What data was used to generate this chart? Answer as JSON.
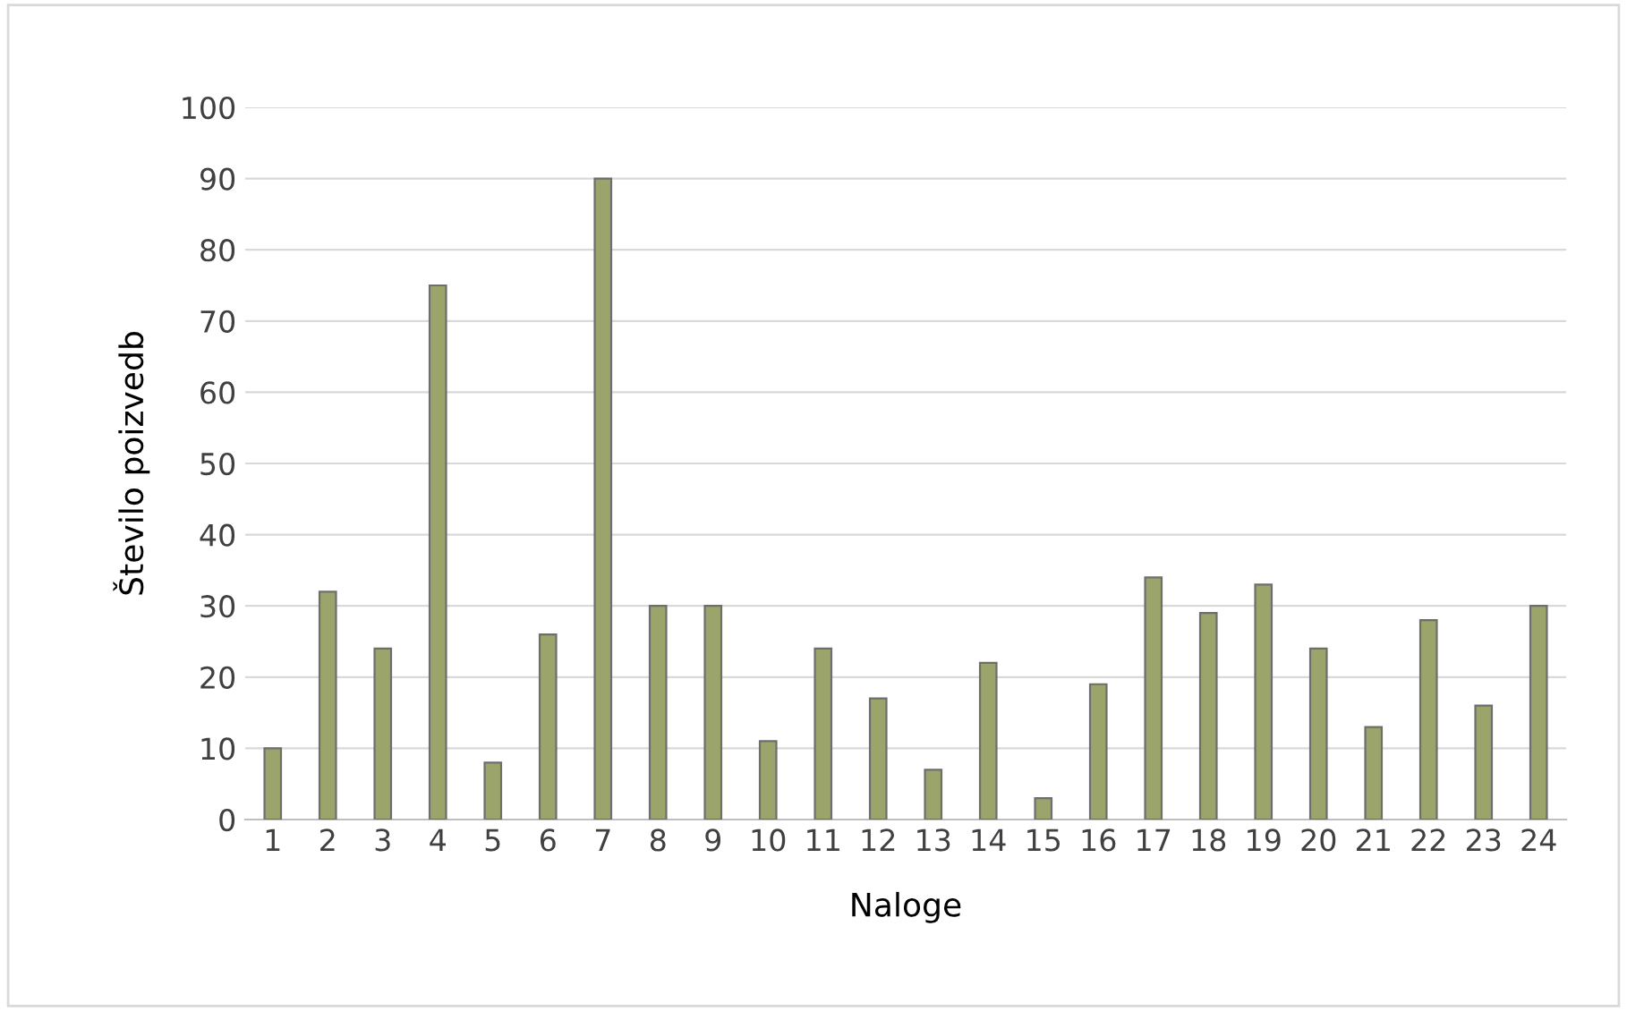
{
  "chart_data": {
    "type": "bar",
    "xlabel": "Naloge",
    "ylabel": "Število poizvedb",
    "categories": [
      "1",
      "2",
      "3",
      "4",
      "5",
      "6",
      "7",
      "8",
      "9",
      "10",
      "11",
      "12",
      "13",
      "14",
      "15",
      "16",
      "17",
      "18",
      "19",
      "20",
      "21",
      "22",
      "23",
      "24"
    ],
    "values": [
      10,
      32,
      24,
      75,
      8,
      26,
      90,
      30,
      30,
      11,
      24,
      17,
      7,
      22,
      3,
      19,
      34,
      29,
      33,
      24,
      13,
      28,
      16,
      30
    ],
    "color": "#9ba56b",
    "ylim": [
      0,
      100
    ],
    "yticks": [
      0,
      10,
      20,
      30,
      40,
      50,
      60,
      70,
      80,
      90,
      100
    ],
    "grid": "y",
    "legend": false
  }
}
